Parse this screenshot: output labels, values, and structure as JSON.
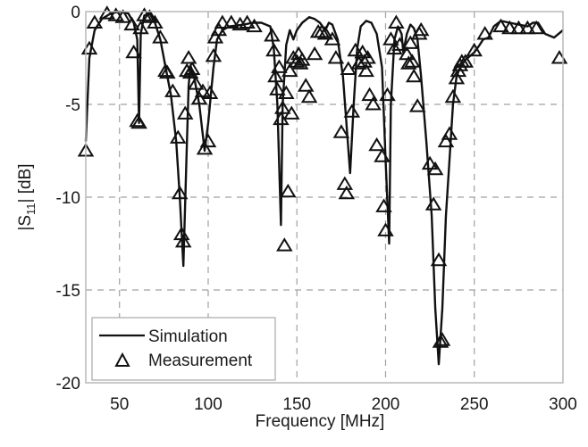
{
  "chart_data": {
    "type": "line",
    "title": "",
    "xlabel": "Frequency [MHz]",
    "ylabel_main": "|S",
    "ylabel_sub": "11",
    "ylabel_tail": "| [dB]",
    "ylabel": "|S11| [dB]",
    "xlim": [
      31,
      300
    ],
    "ylim": [
      -20,
      0
    ],
    "xticks": [
      50,
      100,
      150,
      200,
      250,
      300
    ],
    "yticks": [
      0,
      -5,
      -10,
      -15,
      -20
    ],
    "xtick_labels": [
      "50",
      "100",
      "150",
      "200",
      "250",
      "300"
    ],
    "ytick_labels": [
      "0",
      "-5",
      "-10",
      "-15",
      "-20"
    ],
    "grid": true,
    "legend_position": "bottom-left",
    "series": [
      {
        "name": "Simulation",
        "style": "solid-line",
        "color": "#111111",
        "x": [
          31,
          33,
          36,
          40,
          45,
          50,
          55,
          58,
          60,
          61,
          62,
          64,
          67,
          70,
          73,
          76,
          79,
          82,
          84,
          86,
          88,
          89,
          90,
          92,
          95,
          98,
          100,
          103,
          105,
          108,
          112,
          120,
          125,
          130,
          135,
          137,
          139,
          141,
          142,
          144,
          146,
          148,
          150,
          153,
          157,
          160,
          163,
          166,
          168,
          170,
          173,
          176,
          180,
          182,
          184,
          186,
          189,
          192,
          195,
          198,
          200,
          202,
          203,
          205,
          207,
          209,
          210,
          212,
          214,
          216,
          218,
          220,
          223,
          226,
          228,
          230,
          232,
          234,
          236,
          238,
          240,
          242,
          245,
          250,
          253,
          255,
          258,
          261,
          265,
          270,
          275,
          280,
          283,
          286,
          290,
          295,
          300
        ],
        "y": [
          -7,
          -2.5,
          -1,
          -0.4,
          -0.1,
          0,
          -0.1,
          -0.6,
          -1.5,
          -6,
          -1.2,
          -0.2,
          -0.1,
          -0.6,
          -1.5,
          -3,
          -4.5,
          -7,
          -10,
          -13.7,
          -7,
          -4,
          -2.9,
          -3.5,
          -5,
          -7.5,
          -6,
          -3,
          -1.5,
          -1,
          -0.8,
          -0.7,
          -0.6,
          -0.6,
          -0.8,
          -2,
          -5,
          -11.5,
          -5,
          -1.8,
          -1,
          -1.5,
          -1,
          -0.6,
          -0.3,
          -0.4,
          -0.6,
          -1,
          -0.6,
          -0.7,
          -1.5,
          -3.5,
          -8.7,
          -5,
          -2,
          -0.8,
          -0.5,
          -0.6,
          -1.2,
          -3,
          -8,
          -12.5,
          -5,
          -1.5,
          -0.8,
          -1.2,
          -2.2,
          -1.2,
          -0.7,
          -0.9,
          -1.5,
          -3.5,
          -7,
          -11,
          -16,
          -19,
          -16,
          -11,
          -8,
          -5,
          -3.5,
          -3,
          -2.6,
          -2.2,
          -1.8,
          -1.5,
          -1.4,
          -0.8,
          -0.5,
          -0.6,
          -0.7,
          -0.8,
          -0.6,
          -0.6,
          -1.2,
          -1.4,
          -1
        ]
      },
      {
        "name": "Measurement",
        "style": "triangle-marker",
        "color": "#111111",
        "x": [
          31,
          33,
          36,
          43,
          48,
          52,
          57,
          58,
          60,
          61,
          62,
          64,
          67,
          70,
          73,
          76,
          77,
          80,
          83,
          84,
          85,
          86,
          87,
          88,
          89,
          90,
          91,
          93,
          95,
          97,
          98,
          100,
          101,
          103,
          104,
          106,
          108,
          113,
          118,
          122,
          126,
          136,
          137,
          138,
          139,
          140,
          141,
          142,
          143,
          144,
          145,
          146,
          147,
          148,
          150,
          151,
          152,
          153,
          155,
          157,
          160,
          162,
          164,
          166,
          170,
          172,
          175,
          177,
          178,
          179,
          181,
          183,
          185,
          187,
          188,
          189,
          190,
          191,
          193,
          195,
          198,
          199,
          200,
          201,
          203,
          205,
          206,
          208,
          212,
          213,
          214,
          215,
          216,
          218,
          219,
          220,
          225,
          227,
          228,
          230,
          231,
          232,
          234,
          236,
          238,
          240,
          241,
          242,
          243,
          245,
          250,
          256,
          265,
          270,
          275,
          280,
          285,
          298
        ],
        "y": [
          -7.5,
          -2,
          -0.6,
          -0.1,
          -0.2,
          -0.3,
          -0.7,
          -2.2,
          -5.9,
          -6,
          -0.9,
          -0.2,
          -0.3,
          -0.6,
          -1.4,
          -3.2,
          -3.3,
          -4.3,
          -6.8,
          -9.8,
          -12,
          -12.4,
          -5.5,
          -3.2,
          -2.5,
          -3.3,
          -3.1,
          -3.9,
          -4.7,
          -4.3,
          -7.4,
          -7,
          -4.4,
          -2.4,
          -1.4,
          -1,
          -0.6,
          -0.6,
          -0.7,
          -0.6,
          -0.8,
          -1.3,
          -2.1,
          -3.5,
          -4.2,
          -3,
          -5.8,
          -5.2,
          -12.6,
          -4.4,
          -9.7,
          -3.2,
          -5.5,
          -2.5,
          -2.7,
          -2.3,
          -2.8,
          -2.6,
          -4,
          -4.6,
          -2.3,
          -1.1,
          -1.1,
          -1.2,
          -1.5,
          -2.5,
          -6.5,
          -9.3,
          -9.8,
          -3.1,
          -5.4,
          -2.1,
          -2.8,
          -2.2,
          -2.7,
          -3.2,
          -2.5,
          -4.5,
          -5,
          -7.2,
          -7.8,
          -10.5,
          -11.8,
          -4.5,
          -1.5,
          -2,
          -0.6,
          -1.8,
          -2.3,
          -2.8,
          -1.7,
          -2.7,
          -3.5,
          -5.1,
          -1.2,
          -1,
          -8.2,
          -10.4,
          -8.5,
          -13.4,
          -17.8,
          -17.7,
          -7,
          -6.6,
          -4.6,
          -3.6,
          -3.2,
          -2.9,
          -2.7,
          -2.7,
          -2.1,
          -1.2,
          -0.8,
          -0.9,
          -0.9,
          -0.9,
          -0.9,
          -2.5
        ]
      }
    ]
  }
}
